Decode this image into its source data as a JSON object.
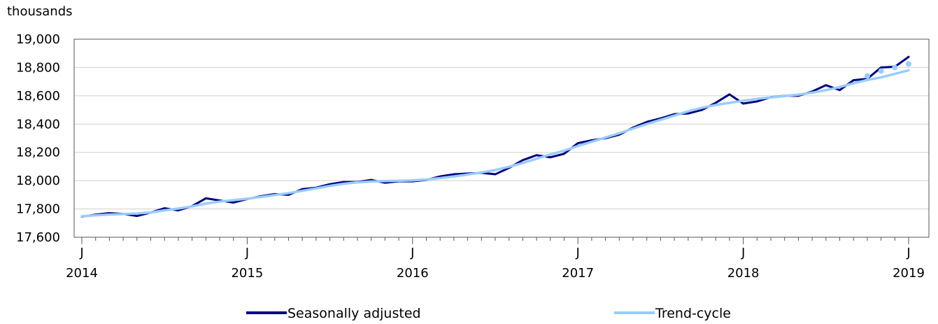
{
  "chart_data": {
    "type": "line",
    "unit_label": "thousands",
    "ylim": [
      17600,
      19000
    ],
    "y_ticks": [
      17600,
      17800,
      18000,
      18200,
      18400,
      18600,
      18800,
      19000
    ],
    "y_tick_labels": [
      "17,600",
      "17,800",
      "18,000",
      "18,200",
      "18,400",
      "18,600",
      "18,800",
      "19,000"
    ],
    "x_ticks": [
      {
        "month_index": 0,
        "month": "J",
        "year": "2014"
      },
      {
        "month_index": 12,
        "month": "J",
        "year": "2015"
      },
      {
        "month_index": 24,
        "month": "J",
        "year": "2016"
      },
      {
        "month_index": 36,
        "month": "J",
        "year": "2017"
      },
      {
        "month_index": 48,
        "month": "J",
        "year": "2018"
      },
      {
        "month_index": 60,
        "month": "J",
        "year": "2019"
      }
    ],
    "grid": true,
    "legend_position": "bottom",
    "series": [
      {
        "name": "Seasonally adjusted",
        "color": "#000080",
        "values": [
          17745,
          17760,
          17770,
          17765,
          17750,
          17775,
          17805,
          17790,
          17820,
          17875,
          17860,
          17845,
          17870,
          17890,
          17905,
          17900,
          17940,
          17950,
          17975,
          17990,
          17990,
          18005,
          17985,
          17995,
          17995,
          18005,
          18030,
          18045,
          18050,
          18055,
          18045,
          18090,
          18145,
          18180,
          18165,
          18190,
          18265,
          18285,
          18300,
          18325,
          18375,
          18415,
          18440,
          18470,
          18475,
          18500,
          18550,
          18610,
          18545,
          18560,
          18590,
          18600,
          18600,
          18630,
          18675,
          18640,
          18710,
          18720,
          18800,
          18805,
          18875
        ]
      },
      {
        "name": "Trend-cycle",
        "color": "#99ccff",
        "values": [
          17748,
          17755,
          17760,
          17764,
          17768,
          17775,
          17790,
          17803,
          17818,
          17838,
          17852,
          17862,
          17872,
          17885,
          17898,
          17912,
          17928,
          17945,
          17963,
          17978,
          17988,
          17994,
          17997,
          17999,
          18002,
          18008,
          18018,
          18030,
          18043,
          18058,
          18075,
          18098,
          18125,
          18155,
          18185,
          18212,
          18245,
          18275,
          18305,
          18335,
          18368,
          18400,
          18430,
          18460,
          18490,
          18515,
          18535,
          18550,
          18565,
          18578,
          18588,
          18598,
          18608,
          18622,
          18640,
          18662,
          18688,
          18712,
          18730,
          18755,
          18780
        ],
        "projected_from_index": 57,
        "projected_values": [
          18740,
          18775,
          18800,
          18825
        ]
      }
    ]
  }
}
